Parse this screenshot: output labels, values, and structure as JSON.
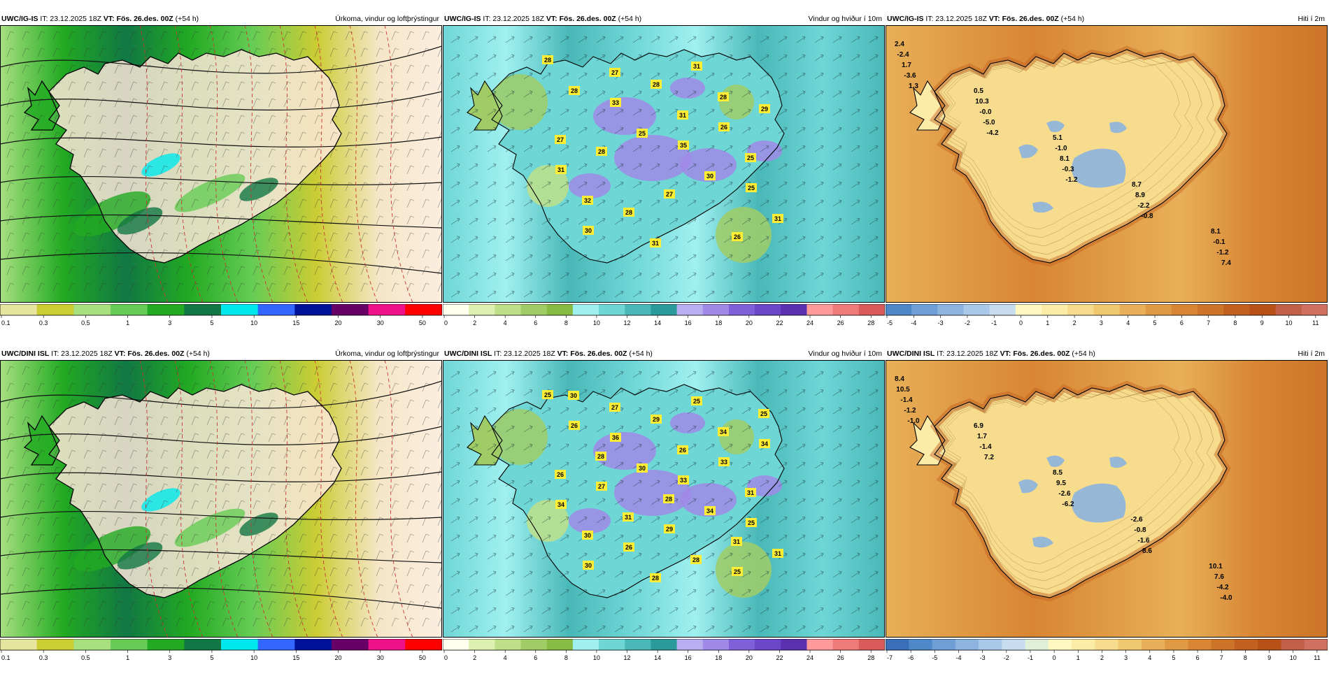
{
  "precip_colors": [
    "#e5e5a0",
    "#cccc33",
    "#a8e080",
    "#66cc55",
    "#22aa22",
    "#117744",
    "#00e8ee",
    "#3366ff",
    "#001199",
    "#660066",
    "#ee1188",
    "#ff0000"
  ],
  "wind_colors": [
    "#ffffee",
    "#ddf0b0",
    "#bfe088",
    "#a0cc66",
    "#88bb44",
    "#a0f0f0",
    "#6fd6d6",
    "#4ab8b8",
    "#2a9a9a",
    "#b8aef0",
    "#a08ae8",
    "#8060d8",
    "#6a46c8",
    "#5a30b0",
    "#ff9a9a",
    "#ee7a7a",
    "#d85a5a"
  ],
  "temp_colors_top": [
    "#4f88c8",
    "#6e9ed4",
    "#8cb4de",
    "#aac8e8",
    "#c8dcf0",
    "#fff8c0",
    "#fbeca8",
    "#f6dc8c",
    "#f0c870",
    "#e8b058",
    "#e09a44",
    "#d88634",
    "#cc7428",
    "#c26020",
    "#b85018",
    "#c06048",
    "#d07060"
  ],
  "temp_colors_bottom": [
    "#3a6eb8",
    "#4f88c8",
    "#6e9ed4",
    "#8cb4de",
    "#aac8e8",
    "#c8dcf0",
    "#e0f0d8",
    "#fff8c0",
    "#fbeca8",
    "#f6dc8c",
    "#f0c870",
    "#e8b058",
    "#e09a44",
    "#d88634",
    "#cc7428",
    "#c26020",
    "#b85018",
    "#c06048",
    "#d07060"
  ],
  "panels": [
    {
      "kind": "precip",
      "model": "UWC/IG-IS",
      "it_label": " IT: 23.12.2025 18Z ",
      "vt_label": "VT: Fös. 26.des. 00Z",
      "lead": " (+54 h)",
      "title": "Úrkoma, vindur og loftþrýstingur",
      "ticks": [
        "0.1",
        "0.3",
        "0.5",
        "1",
        "3",
        "5",
        "10",
        "15",
        "20",
        "30",
        "50"
      ],
      "labels": []
    },
    {
      "kind": "wind",
      "model": "UWC/IG-IS",
      "it_label": " IT: 23.12.2025 18Z ",
      "vt_label": "VT: Fös. 26.des. 00Z",
      "lead": " (+54 h)",
      "title": "Vindur og hviður í 10m",
      "ticks": [
        "0",
        "2",
        "4",
        "6",
        "8",
        "10",
        "12",
        "14",
        "16",
        "18",
        "20",
        "22",
        "24",
        "26",
        "28"
      ],
      "labels": [
        "28",
        "33",
        "35",
        "25",
        "30",
        "28",
        "26",
        "31",
        "28",
        "31",
        "29",
        "28",
        "27",
        "26",
        "28",
        "25",
        "30",
        "31",
        "27",
        "31",
        "25",
        "32",
        "31",
        "28",
        "27"
      ]
    },
    {
      "kind": "temp",
      "model": "UWC/IG-IS",
      "it_label": " IT: 23.12.2025 18Z ",
      "vt_label": "VT: Fös. 26.des. 00Z",
      "lead": " (+54 h)",
      "title": "Hiti í 2m",
      "ticks": [
        "-5",
        "-4",
        "-3",
        "-2",
        "-1",
        "0",
        "1",
        "2",
        "3",
        "4",
        "5",
        "6",
        "7",
        "8",
        "9",
        "10",
        "11"
      ],
      "labels": [
        "2.4",
        "0.5",
        "5.1",
        "8.7",
        "8.1",
        "-2.4",
        "10.3",
        "-1.0",
        "8.9",
        "-0.1",
        "1.7",
        "-0.0",
        "8.1",
        "-2.2",
        "-1.2",
        "-3.6",
        "-5.0",
        "-0.3",
        "-0.8",
        "7.4",
        "1.3",
        "-4.2",
        "-1.2"
      ]
    },
    {
      "kind": "precip",
      "model": "UWC/DINI ISL",
      "it_label": " IT: 23.12.2025 18Z ",
      "vt_label": "VT: Fös. 26.des. 00Z",
      "lead": " (+54 h)",
      "title": "Úrkoma, vindur og loftþrýstingur",
      "ticks": [
        "0.1",
        "0.3",
        "0.5",
        "1",
        "3",
        "5",
        "10",
        "15",
        "20",
        "30",
        "50"
      ],
      "labels": []
    },
    {
      "kind": "wind",
      "model": "UWC/DINI ISL",
      "it_label": " IT: 23.12.2025 18Z ",
      "vt_label": "VT: Fös. 26.des. 00Z",
      "lead": " (+54 h)",
      "title": "Vindur og hviður í 10m",
      "ticks": [
        "0",
        "2",
        "4",
        "6",
        "8",
        "10",
        "12",
        "14",
        "16",
        "18",
        "20",
        "22",
        "24",
        "26",
        "28"
      ],
      "labels": [
        "25",
        "36",
        "33",
        "25",
        "30",
        "29",
        "33",
        "34",
        "26",
        "25",
        "34",
        "27",
        "29",
        "25",
        "26",
        "30",
        "34",
        "31",
        "27",
        "26",
        "31",
        "30",
        "28",
        "34",
        "26",
        "31",
        "28",
        "25",
        "28",
        "28",
        "31",
        "30"
      ]
    },
    {
      "kind": "temp",
      "model": "UWC/DINI ISL",
      "it_label": " IT: 23.12.2025 18Z ",
      "vt_label": "VT: Fös. 26.des. 00Z",
      "lead": " (+54 h)",
      "title": "Hiti í 2m",
      "ticks": [
        "-7",
        "-6",
        "-5",
        "-4",
        "-3",
        "-2",
        "-1",
        "0",
        "1",
        "2",
        "3",
        "4",
        "5",
        "6",
        "7",
        "8",
        "9",
        "10",
        "11"
      ],
      "labels": [
        "8.4",
        "6.9",
        "8.5",
        "-2.6",
        "10.1",
        "10.5",
        "1.7",
        "9.5",
        "-0.8",
        "7.6",
        "-1.4",
        "-1.4",
        "-2.6",
        "-1.6",
        "-4.2",
        "-1.2",
        "7.2",
        "-6.2",
        "8.6",
        "-4.0",
        "-1.0"
      ]
    }
  ]
}
